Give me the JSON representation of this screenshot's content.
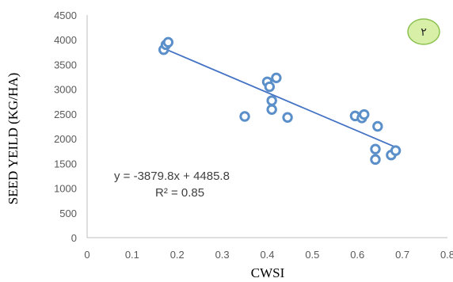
{
  "chart_data": {
    "type": "scatter",
    "xlabel": "CWSI",
    "ylabel": "SEED YEILD (KG/HA)",
    "xlim": [
      0,
      0.8
    ],
    "ylim": [
      0,
      4500
    ],
    "xticks": [
      "0",
      "0.1",
      "0.2",
      "0.3",
      "0.4",
      "0.5",
      "0.6",
      "0.7",
      "0.8"
    ],
    "yticks": [
      "0",
      "500",
      "1000",
      "1500",
      "2000",
      "2500",
      "3000",
      "3500",
      "4000",
      "4500"
    ],
    "grid": false,
    "marker_color": "#5B8FC9",
    "trendline_color": "#4472C4",
    "series": [
      {
        "points": [
          [
            0.17,
            3800
          ],
          [
            0.175,
            3900
          ],
          [
            0.18,
            3950
          ],
          [
            0.4,
            3150
          ],
          [
            0.405,
            3050
          ],
          [
            0.42,
            3230
          ],
          [
            0.41,
            2770
          ],
          [
            0.41,
            2590
          ],
          [
            0.35,
            2450
          ],
          [
            0.445,
            2430
          ],
          [
            0.595,
            2460
          ],
          [
            0.61,
            2420
          ],
          [
            0.615,
            2490
          ],
          [
            0.645,
            2250
          ],
          [
            0.64,
            1790
          ],
          [
            0.64,
            1580
          ],
          [
            0.675,
            1670
          ],
          [
            0.685,
            1760
          ]
        ]
      }
    ],
    "trendline": {
      "slope": -3879.8,
      "intercept": 4485.8,
      "x_range": [
        0.17,
        0.685
      ]
    },
    "annotations": {
      "equation": "y = -3879.8x + 4485.8",
      "r_squared": "R² = 0.85"
    },
    "badge": {
      "label": "٢",
      "fill": "#D8EFA8",
      "stroke": "#8CC152"
    }
  }
}
